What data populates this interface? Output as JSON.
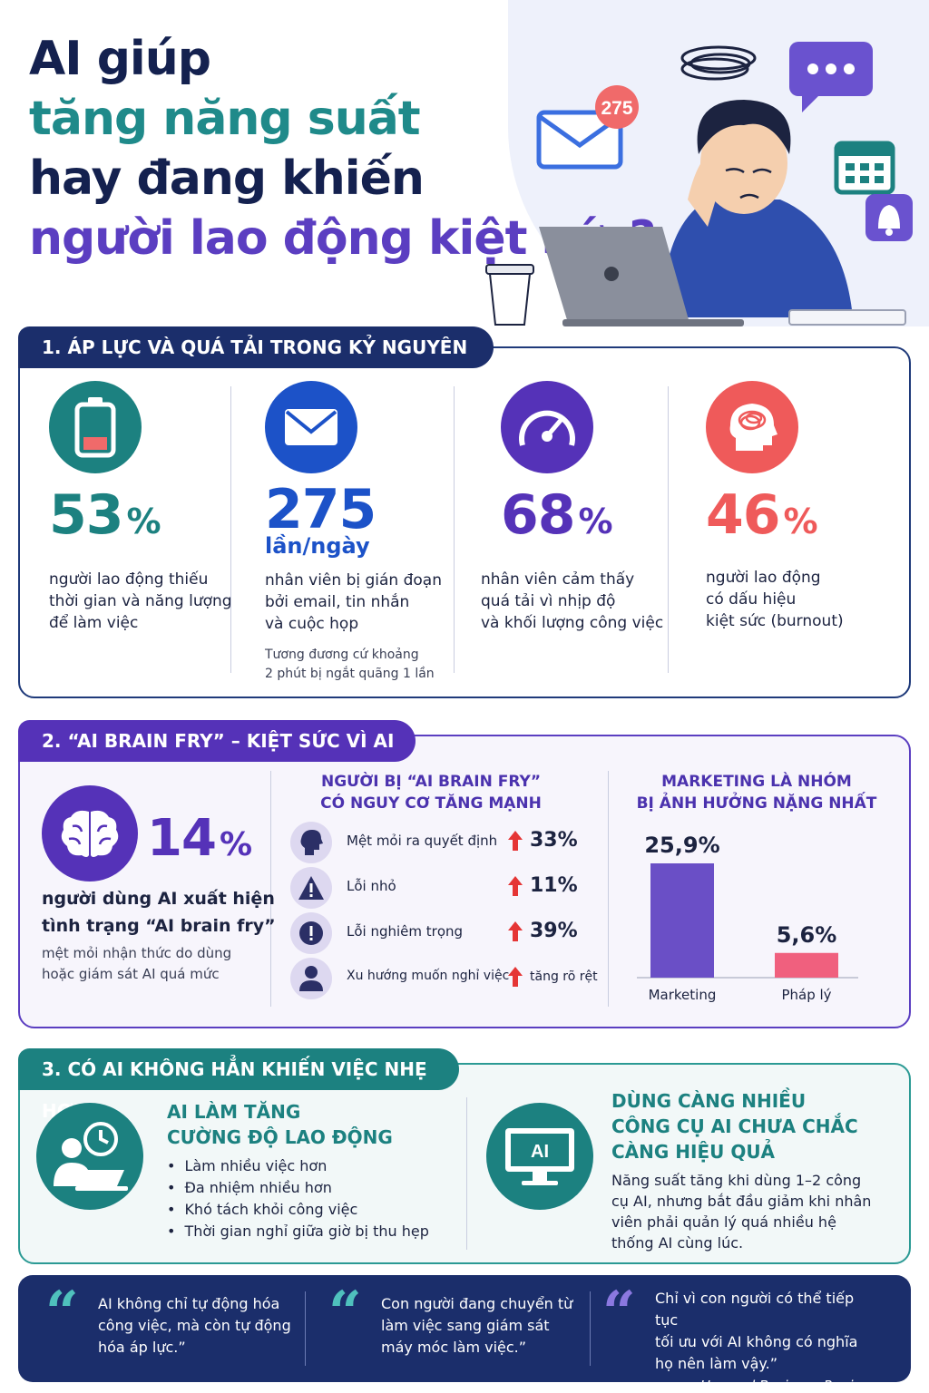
{
  "title": {
    "line1": "AI giúp",
    "line2": "tăng năng suất",
    "line3": "hay đang khiến",
    "line4": "người lao động kiệt sức?"
  },
  "hero": {
    "mail_badge": "275"
  },
  "section1": {
    "tag": "1. ÁP LỰC VÀ QUÁ TẢI TRONG KỶ NGUYÊN AI",
    "stats": [
      {
        "value": "53",
        "suffix": "%",
        "desc": [
          "người lao động thiếu",
          "thời gian và năng lượng",
          "để làm việc"
        ],
        "color": "#1c8180",
        "icon": "battery-low-icon"
      },
      {
        "value": "275",
        "unit": "lần/ngày",
        "desc": [
          "nhân viên bị gián đoạn",
          "bởi email, tin nhắn",
          "và cuộc họp"
        ],
        "note": [
          "Tương đương cứ khoảng",
          "2 phút bị ngắt quãng 1 lần"
        ],
        "color": "#1c52c8",
        "icon": "envelope-icon"
      },
      {
        "value": "68",
        "suffix": "%",
        "desc": [
          "nhân viên cảm thấy",
          "quá tải vì nhịp độ",
          "và khối lượng công việc"
        ],
        "color": "#5532b8",
        "icon": "speedometer-icon"
      },
      {
        "value": "46",
        "suffix": "%",
        "desc": [
          "người lao động",
          "có dấu hiệu",
          "kiệt sức (burnout)"
        ],
        "color": "#ef5a5a",
        "icon": "tangled-brain-icon"
      }
    ]
  },
  "section2": {
    "tag": "2. “AI BRAIN FRY” – KIỆT SỨC VÌ AI",
    "stat_value": "14",
    "stat_suffix": "%",
    "desc": [
      "người dùng AI xuất hiện",
      "tình trạng “AI brain fry”"
    ],
    "sub": [
      "mệt mỏi nhận thức do dùng",
      "hoặc giám sát AI quá mức"
    ],
    "risk_head": [
      "NGƯỜI BỊ “AI BRAIN FRY”",
      "CÓ NGUY CƠ TĂNG MẠNH"
    ],
    "risks": [
      {
        "label": "Mệt mỏi ra quyết định",
        "value": "33%",
        "icon": "head-profile-icon"
      },
      {
        "label": "Lỗi nhỏ",
        "value": "11%",
        "icon": "warning-triangle-icon"
      },
      {
        "label": "Lỗi nghiêm trọng",
        "value": "39%",
        "icon": "alert-circle-icon"
      },
      {
        "label": "Xu hướng muốn nghỉ việc",
        "value": "tăng rõ rệt",
        "icon": "person-icon"
      }
    ],
    "chart_head": [
      "MARKETING LÀ NHÓM",
      "BỊ ẢNH HƯỞNG NẶNG NHẤT"
    ]
  },
  "chart_data": {
    "type": "bar",
    "categories": [
      "Marketing",
      "Pháp lý"
    ],
    "values": [
      25.9,
      5.6
    ],
    "value_labels": [
      "25,9%",
      "5,6%"
    ],
    "colors": [
      "#6a4fc6",
      "#f0607e"
    ],
    "ylim": [
      0,
      30
    ]
  },
  "section3": {
    "tag": "3. CÓ AI KHÔNG HẲN KHIẾN VIỆC NHẸ HƠN",
    "left_head": [
      "AI LÀM TĂNG",
      "CƯỜNG ĐỘ LAO ĐỘNG"
    ],
    "left_items": [
      "Làm nhiều việc hơn",
      "Đa nhiệm nhiều hơn",
      "Khó tách khỏi công việc",
      "Thời gian nghỉ giữa giờ bị thu hẹp"
    ],
    "right_head": [
      "DÙNG CÀNG NHIỀU",
      "CÔNG CỤ AI CHƯA CHẮC",
      "CÀNG HIỆU QUẢ"
    ],
    "right_text": [
      "Năng suất tăng khi dùng 1–2 công",
      "cụ AI, nhưng bắt đầu giảm khi nhân",
      "viên phải quản lý quá nhiều hệ",
      "thống AI cùng lúc."
    ],
    "monitor_label": "AI"
  },
  "quotes": [
    {
      "mark": "“",
      "lines": [
        "AI không chỉ tự động hóa",
        "công việc, mà còn tự động",
        "hóa áp lực.”"
      ],
      "color": "#4fc1bd"
    },
    {
      "mark": "“",
      "lines": [
        "Con người đang chuyển từ",
        "làm việc sang giám sát",
        "máy móc làm việc.”"
      ],
      "color": "#4fc1bd"
    },
    {
      "mark": "“",
      "lines": [
        "Chỉ vì con người có thể tiếp tục",
        "tối ưu với AI không có nghĩa",
        "họ nên làm vậy.”"
      ],
      "source": "– Harvard Business Review",
      "color": "#8b78e0"
    }
  ]
}
